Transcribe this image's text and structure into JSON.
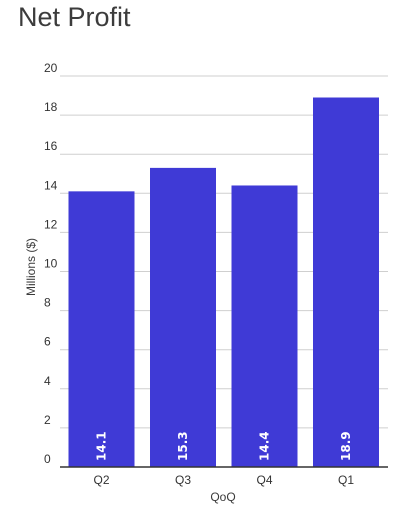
{
  "chart_data": {
    "type": "bar",
    "title": "Net Profit",
    "xlabel": "QoQ",
    "ylabel": "Millions ($)",
    "categories": [
      "Q2",
      "Q3",
      "Q4",
      "Q1"
    ],
    "values": [
      14.1,
      15.3,
      14.4,
      18.9
    ],
    "data_labels": [
      "14.1",
      "15.3",
      "14.4",
      "18.9"
    ],
    "ylim": [
      0,
      20
    ],
    "yticks": [
      0,
      2,
      4,
      6,
      8,
      10,
      12,
      14,
      16,
      18,
      20
    ],
    "ytick_labels": [
      "0",
      "2",
      "4",
      "6",
      "8",
      "10",
      "12",
      "14",
      "16",
      "18",
      "20"
    ],
    "grid": true,
    "legend": "none",
    "bar_color": "#3f3ad6",
    "grid_color": "#cfcfcf",
    "baseline_color": "#333333"
  }
}
